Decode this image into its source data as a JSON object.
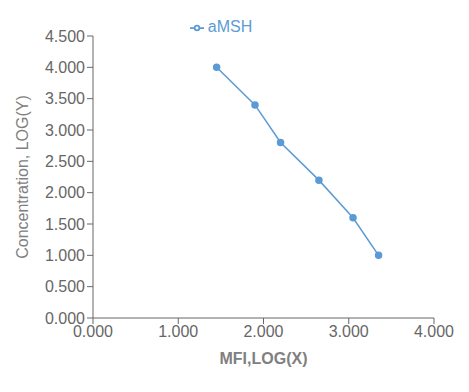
{
  "chart_data": {
    "type": "line",
    "x": [
      1.45,
      1.9,
      2.2,
      2.65,
      3.05,
      3.35
    ],
    "series": [
      {
        "name": "aMSH",
        "color": "#5B9BD5",
        "marker": "circle",
        "values": [
          4.0,
          3.4,
          2.8,
          2.2,
          1.6,
          1.0
        ]
      }
    ],
    "xlabel": "MFI,LOG(X)",
    "ylabel": "Concentration, LOG(Y)",
    "xlim": [
      0.0,
      4.0
    ],
    "ylim": [
      0.0,
      4.5
    ],
    "xticks": [
      {
        "value": 0.0,
        "label": "0.000"
      },
      {
        "value": 1.0,
        "label": "1.000"
      },
      {
        "value": 2.0,
        "label": "2.000"
      },
      {
        "value": 3.0,
        "label": "3.000"
      },
      {
        "value": 4.0,
        "label": "4.000"
      }
    ],
    "yticks": [
      {
        "value": 0.0,
        "label": "0.000"
      },
      {
        "value": 0.5,
        "label": "0.500"
      },
      {
        "value": 1.0,
        "label": "1.000"
      },
      {
        "value": 1.5,
        "label": "1.500"
      },
      {
        "value": 2.0,
        "label": "2.000"
      },
      {
        "value": 2.5,
        "label": "2.500"
      },
      {
        "value": 3.0,
        "label": "3.000"
      },
      {
        "value": 3.5,
        "label": "3.500"
      },
      {
        "value": 4.0,
        "label": "4.000"
      },
      {
        "value": 4.5,
        "label": "4.500"
      }
    ],
    "grid": false,
    "legend": "top"
  }
}
